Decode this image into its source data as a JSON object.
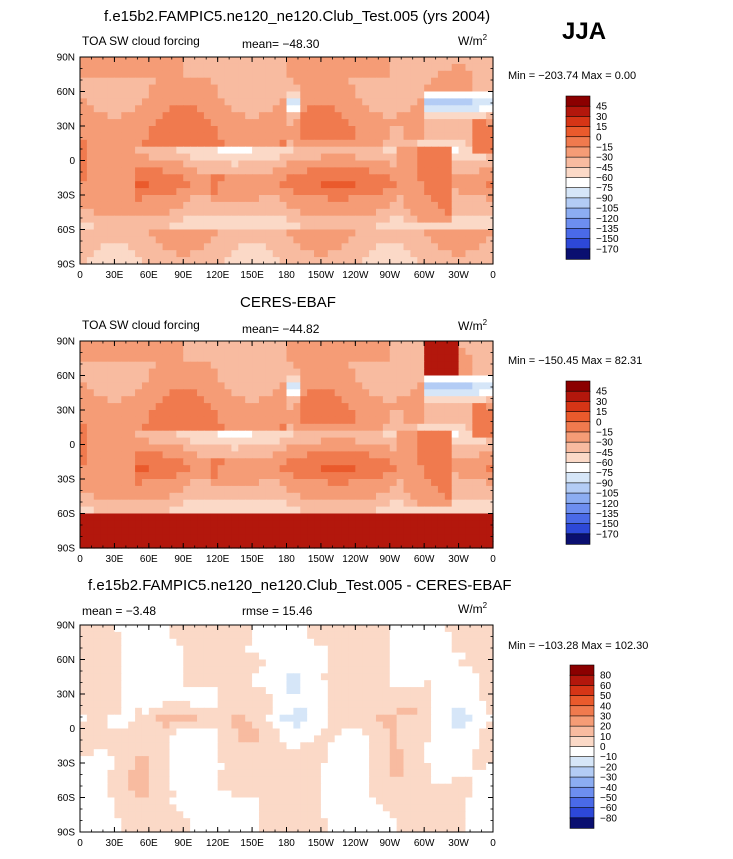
{
  "season": "JJA",
  "units_label": "W/m",
  "units_sup": "2",
  "x_ticks": [
    "0",
    "30E",
    "60E",
    "90E",
    "120E",
    "150E",
    "180",
    "150W",
    "120W",
    "90W",
    "60W",
    "30W",
    "0"
  ],
  "y_ticks": [
    "90N",
    "60N",
    "30N",
    "0",
    "30S",
    "60S",
    "90S"
  ],
  "chart_data": [
    {
      "type": "heatmap",
      "title": "f.e15b2.FAMPIC5.ne120_ne120.Club_Test.005 (yrs 2004)",
      "left_label": "TOA SW cloud forcing",
      "stat_text": "mean= −48.30",
      "mean": -48.3,
      "minmax_text": "Min = −203.74  Max =    0.00",
      "min": -203.74,
      "max": 0.0,
      "xlim": [
        0,
        360
      ],
      "ylim": [
        -90,
        90
      ],
      "levels": [
        "45",
        "30",
        "15",
        "0",
        "−15",
        "−30",
        "−45",
        "−60",
        "−75",
        "−90",
        "−105",
        "−120",
        "−135",
        "−150",
        "−170"
      ],
      "colors": [
        "#8b0000",
        "#b3170c",
        "#d63516",
        "#ea5a2c",
        "#f07a4e",
        "#f59c76",
        "#f8bba0",
        "#fbd9c7",
        "#fdefe6",
        "#d6e6f8",
        "#b3ccf5",
        "#8cadf2",
        "#6d8ef0",
        "#4a6ae8",
        "#2d48d8",
        "#1a2bbd",
        "#101a99",
        "#0a0f70"
      ],
      "cbar_colors": [
        "#8b0000",
        "#b3170c",
        "#d63516",
        "#ea5a2c",
        "#f07a4e",
        "#f59c76",
        "#f8bba0",
        "#fbd9c7",
        "#ffffff",
        "#d6e6f8",
        "#b3ccf5",
        "#8cadf2",
        "#6d8ef0",
        "#4a6ae8",
        "#2d48d8",
        "#0a0f70"
      ],
      "field": "ctl"
    },
    {
      "type": "heatmap",
      "title": "CERES-EBAF",
      "left_label": "TOA SW cloud forcing",
      "stat_text": "mean= −44.82",
      "mean": -44.82,
      "minmax_text": "Min = −150.45  Max =   82.31",
      "min": -150.45,
      "max": 82.31,
      "xlim": [
        0,
        360
      ],
      "ylim": [
        -90,
        90
      ],
      "levels": [
        "45",
        "30",
        "15",
        "0",
        "−15",
        "−30",
        "−45",
        "−60",
        "−75",
        "−90",
        "−105",
        "−120",
        "−135",
        "−150",
        "−170"
      ],
      "cbar_colors": [
        "#8b0000",
        "#b3170c",
        "#d63516",
        "#ea5a2c",
        "#f07a4e",
        "#f59c76",
        "#f8bba0",
        "#fbd9c7",
        "#ffffff",
        "#d6e6f8",
        "#b3ccf5",
        "#8cadf2",
        "#6d8ef0",
        "#4a6ae8",
        "#2d48d8",
        "#0a0f70"
      ],
      "field": "obs"
    },
    {
      "type": "heatmap",
      "title": "f.e15b2.FAMPIC5.ne120_ne120.Club_Test.005 - CERES-EBAF",
      "left_label": "mean =   −3.48",
      "stat_text": "rmse =   15.46",
      "mean": -3.48,
      "rmse": 15.46,
      "minmax_text": "Min = −103.28  Max = 102.30",
      "min": -103.28,
      "max": 102.3,
      "xlim": [
        0,
        360
      ],
      "ylim": [
        -90,
        90
      ],
      "levels": [
        "80",
        "60",
        "50",
        "40",
        "30",
        "20",
        "10",
        "0",
        "−10",
        "−20",
        "−30",
        "−40",
        "−50",
        "−60",
        "−80"
      ],
      "cbar_colors": [
        "#8b0000",
        "#b3170c",
        "#d63516",
        "#ea5a2c",
        "#f07a4e",
        "#f59c76",
        "#f8bba0",
        "#fbd9c7",
        "#ffffff",
        "#d6e6f8",
        "#b3ccf5",
        "#8cadf2",
        "#6d8ef0",
        "#4a6ae8",
        "#2d48d8",
        "#0a0f70"
      ],
      "field": "diff"
    }
  ]
}
